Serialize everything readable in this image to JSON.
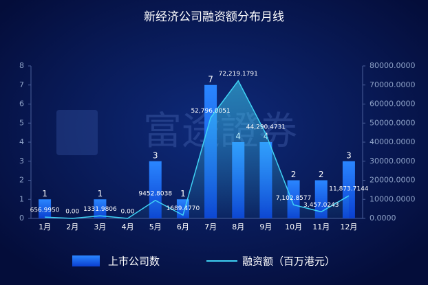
{
  "chart_data": {
    "type": "combo",
    "title": "新经济公司融资额分布月线",
    "watermark": "富途證券",
    "categories": [
      "1月",
      "2月",
      "3月",
      "4月",
      "5月",
      "6月",
      "7月",
      "8月",
      "9月",
      "10月",
      "11月",
      "12月"
    ],
    "series": [
      {
        "name": "上市公司数",
        "type": "bar",
        "color": "#1a6dff",
        "values": [
          1,
          0,
          1,
          0,
          3,
          1,
          7,
          4,
          4,
          2,
          2,
          3
        ]
      },
      {
        "name": "融资额（百万港元）",
        "type": "line",
        "axis": "y2",
        "color": "#3fd2f5",
        "values": [
          656.995,
          0,
          1331.9806,
          0,
          9452.8038,
          1689.477,
          52796.0051,
          72219.1791,
          44290.4731,
          7102.8577,
          3457.0243,
          11873.7144
        ],
        "value_labels": [
          "656.9950",
          "0.00",
          "1331.9806",
          "0.00",
          "9452.8038",
          "1689.4770",
          "52,796.0051",
          "72,219.1791",
          "44,290.4731",
          "7,102.8577",
          "3,457.0243",
          "11,873.7144"
        ]
      }
    ],
    "ylim": [
      0,
      8
    ],
    "yticks": [
      0,
      1,
      2,
      3,
      4,
      5,
      6,
      7,
      8
    ],
    "y2lim": [
      0,
      80000
    ],
    "y2ticks": [
      {
        "value": 0,
        "label": "0.0000"
      },
      {
        "value": 10000,
        "label": "10000.0000"
      },
      {
        "value": 20000,
        "label": "20000.0000"
      },
      {
        "value": 30000,
        "label": "30000.0000"
      },
      {
        "value": 40000,
        "label": "40000.0000"
      },
      {
        "value": 50000,
        "label": "50000.0000"
      },
      {
        "value": 60000,
        "label": "60000.0000"
      },
      {
        "value": 70000,
        "label": "70000.0000"
      },
      {
        "value": 80000,
        "label": "80000.0000"
      }
    ],
    "legend": "bottom"
  }
}
